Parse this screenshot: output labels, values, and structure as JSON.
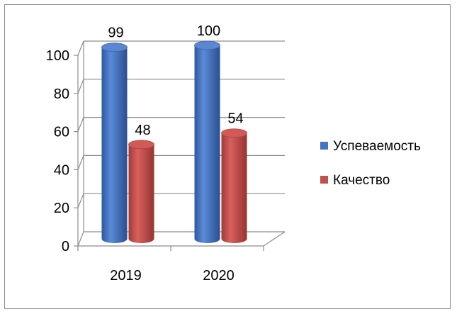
{
  "chart_data": {
    "type": "bar",
    "categories": [
      "2019",
      "2020"
    ],
    "series": [
      {
        "name": "Успеваемость",
        "values": [
          99,
          100
        ],
        "color": "#4472c4"
      },
      {
        "name": "Качество",
        "values": [
          48,
          54
        ],
        "color": "#c0504d"
      }
    ],
    "yticks": [
      "0",
      "20",
      "40",
      "60",
      "80",
      "100"
    ],
    "ylim": [
      0,
      100
    ],
    "title": "",
    "xlabel": "",
    "ylabel": "",
    "legend_position": "right",
    "grid": true,
    "style": "3d-cylinder"
  }
}
